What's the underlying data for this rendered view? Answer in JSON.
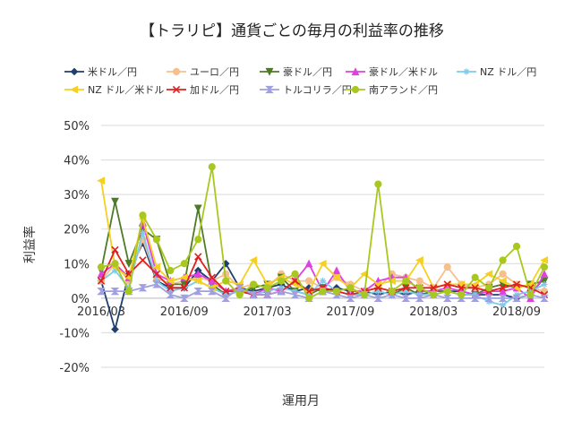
{
  "chart_data": {
    "type": "line",
    "title": "【トラリピ】通貨ごとの毎月の利益率の推移",
    "xlabel": "運用月",
    "ylabel": "利益率",
    "ylim": [
      -0.2,
      0.5
    ],
    "y_ticks": [
      "-20%",
      "-10%",
      "0%",
      "10%",
      "20%",
      "30%",
      "40%",
      "50%"
    ],
    "x_tick_labels": [
      "2016/03",
      "2016/09",
      "2017/03",
      "2017/09",
      "2018/03",
      "2018/09"
    ],
    "x": [
      "2016/03",
      "2016/04",
      "2016/05",
      "2016/06",
      "2016/07",
      "2016/08",
      "2016/09",
      "2016/10",
      "2016/11",
      "2016/12",
      "2017/01",
      "2017/02",
      "2017/03",
      "2017/04",
      "2017/05",
      "2017/06",
      "2017/07",
      "2017/08",
      "2017/09",
      "2017/10",
      "2017/11",
      "2017/12",
      "2018/01",
      "2018/02",
      "2018/03",
      "2018/04",
      "2018/05",
      "2018/06",
      "2018/07",
      "2018/08",
      "2018/09",
      "2018/10",
      "2018/11"
    ],
    "grid": "horizontal",
    "legend_position": "top",
    "series": [
      {
        "name": "米ドル／円",
        "color": "#1f3f6e",
        "marker": "diamond",
        "values": [
          0.05,
          -0.09,
          0.07,
          0.16,
          0.05,
          0.03,
          0.03,
          0.08,
          0.05,
          0.1,
          0.03,
          0.02,
          0.03,
          0.04,
          0.02,
          0.03,
          0.02,
          0.03,
          0.02,
          0.02,
          0.01,
          0.02,
          0.01,
          0.02,
          0.02,
          0.02,
          0.02,
          0.01,
          0.01,
          0.01,
          0.0,
          0.01,
          0.06
        ]
      },
      {
        "name": "ユーロ／円",
        "color": "#f5c08c",
        "marker": "circle",
        "values": [
          0.05,
          0.1,
          0.05,
          0.17,
          0.06,
          0.04,
          0.05,
          0.06,
          0.05,
          0.07,
          0.03,
          0.04,
          0.03,
          0.07,
          0.05,
          0.05,
          0.03,
          0.06,
          0.04,
          0.02,
          0.03,
          0.07,
          0.06,
          0.05,
          0.03,
          0.09,
          0.04,
          0.03,
          0.04,
          0.07,
          0.04,
          0.03,
          0.02
        ]
      },
      {
        "name": "豪ドル／円",
        "color": "#4f7a28",
        "marker": "triangle-down",
        "values": [
          0.08,
          0.28,
          0.1,
          0.2,
          0.17,
          0.04,
          0.04,
          0.26,
          0.04,
          0.01,
          0.02,
          0.03,
          0.04,
          0.06,
          0.02,
          0.01,
          0.03,
          0.02,
          0.01,
          0.01,
          0.02,
          0.01,
          0.03,
          0.01,
          0.02,
          0.02,
          0.01,
          0.01,
          0.03,
          0.04,
          0.03,
          0.04,
          0.05
        ]
      },
      {
        "name": "豪ドル／米ドル",
        "color": "#e040e0",
        "marker": "triangle",
        "values": [
          0.07,
          0.1,
          0.06,
          0.22,
          0.07,
          0.05,
          0.06,
          0.07,
          0.05,
          0.02,
          0.03,
          0.01,
          0.03,
          0.02,
          0.05,
          0.1,
          0.02,
          0.08,
          0.02,
          0.02,
          0.05,
          0.06,
          0.06,
          0.02,
          0.02,
          0.03,
          0.02,
          0.01,
          0.02,
          0.02,
          0.03,
          0.0,
          0.07
        ]
      },
      {
        "name": "NZ ドル／円",
        "color": "#7ecbea",
        "marker": "star",
        "values": [
          0.05,
          0.08,
          0.03,
          0.19,
          0.05,
          0.02,
          0.03,
          0.05,
          0.03,
          0.01,
          0.02,
          0.01,
          0.02,
          0.03,
          0.02,
          0.01,
          0.05,
          0.02,
          0.01,
          0.01,
          0.02,
          0.01,
          0.02,
          0.01,
          0.01,
          0.02,
          0.01,
          0.01,
          -0.01,
          -0.02,
          0.01,
          0.02,
          0.04
        ]
      },
      {
        "name": "NZ ドル／米ドル",
        "color": "#f5d020",
        "marker": "triangle-left",
        "values": [
          0.34,
          0.09,
          0.06,
          0.23,
          0.09,
          0.05,
          0.06,
          0.05,
          0.03,
          0.05,
          0.04,
          0.11,
          0.04,
          0.06,
          0.04,
          0.02,
          0.1,
          0.06,
          0.03,
          0.07,
          0.04,
          0.05,
          0.05,
          0.11,
          0.03,
          0.04,
          0.04,
          0.04,
          0.07,
          0.05,
          0.03,
          0.04,
          0.11
        ]
      },
      {
        "name": "加ドル／円",
        "color": "#e02020",
        "marker": "x",
        "values": [
          0.05,
          0.14,
          0.07,
          0.11,
          0.07,
          0.03,
          0.03,
          0.12,
          0.06,
          0.02,
          0.02,
          0.01,
          0.01,
          0.02,
          0.05,
          0.02,
          0.03,
          0.02,
          0.01,
          0.02,
          0.03,
          0.02,
          0.03,
          0.03,
          0.03,
          0.04,
          0.03,
          0.03,
          0.02,
          0.03,
          0.04,
          0.03,
          0.01
        ]
      },
      {
        "name": "トルコリラ／円",
        "color": "#a0a0e0",
        "marker": "bowtie",
        "values": [
          0.02,
          0.02,
          0.02,
          0.03,
          0.04,
          0.01,
          0.0,
          0.02,
          0.02,
          0.0,
          0.03,
          0.01,
          0.01,
          0.02,
          0.01,
          0.0,
          0.02,
          0.01,
          0.0,
          0.01,
          0.0,
          0.01,
          0.0,
          0.0,
          0.01,
          0.0,
          0.0,
          0.0,
          0.0,
          0.0,
          0.0,
          0.01,
          0.0
        ]
      },
      {
        "name": "南アランド／円",
        "color": "#a8c820",
        "marker": "circle",
        "values": [
          0.09,
          0.1,
          0.02,
          0.24,
          0.17,
          0.08,
          0.1,
          0.17,
          0.38,
          0.05,
          0.01,
          0.04,
          0.03,
          0.05,
          0.07,
          0.0,
          0.02,
          0.02,
          0.03,
          0.01,
          0.33,
          0.02,
          0.05,
          0.03,
          0.01,
          0.02,
          0.01,
          0.06,
          0.03,
          0.11,
          0.15,
          0.01,
          0.09
        ]
      }
    ]
  }
}
